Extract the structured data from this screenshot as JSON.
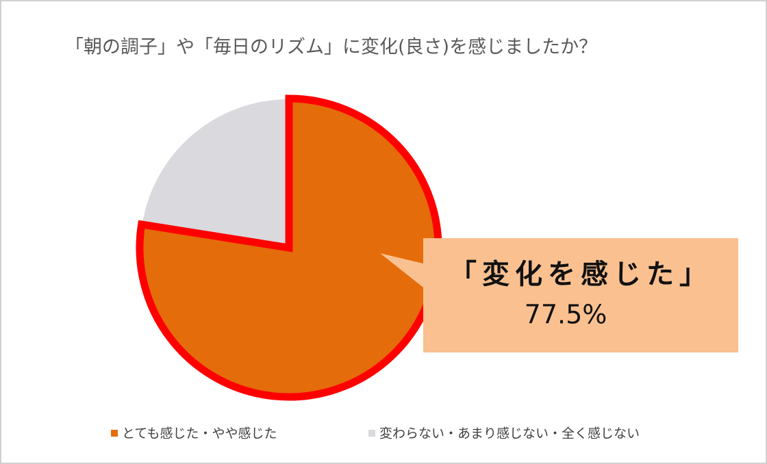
{
  "chart_data": {
    "type": "pie",
    "title": "「朝の調子」や「毎日のリズム」に変化(良さ)を感じましたか？",
    "categories": [
      "とても感じた・やや感じた",
      "変わらない・あまり感じない・全く感じない"
    ],
    "values": [
      77.5,
      22.5
    ],
    "value_labels": [
      "77.5%",
      null
    ],
    "colors": [
      "#e46c0a",
      "#d9d9de"
    ],
    "highlight_stroke": "#ff0000",
    "annotation": "「変化を感じた」",
    "legend": "bottom"
  }
}
